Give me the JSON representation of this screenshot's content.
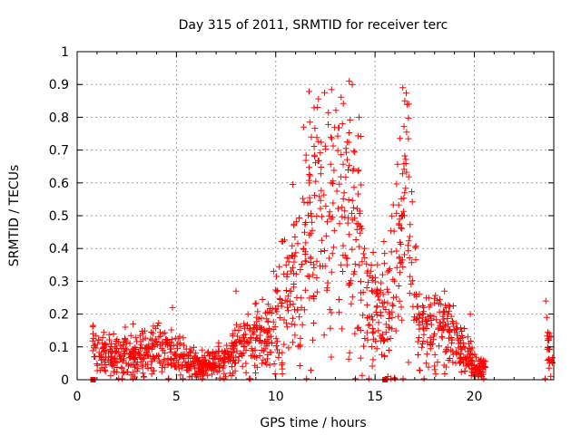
{
  "chart_data": {
    "type": "scatter",
    "title": "Day 315 of 2011, SRMTID for receiver terc",
    "xlabel": "GPS time / hours",
    "ylabel": "SRMTID / TECUs",
    "xlim": [
      0,
      24
    ],
    "ylim": [
      0,
      1
    ],
    "x_ticks": [
      0,
      5,
      10,
      15,
      20
    ],
    "y_ticks": [
      0,
      0.1,
      0.2,
      0.3,
      0.4,
      0.5,
      0.6,
      0.7,
      0.8,
      0.9,
      1
    ],
    "x_tick_labels": [
      "0",
      "5",
      "10",
      "15",
      "20"
    ],
    "y_tick_labels": [
      "0",
      "0.1",
      "0.2",
      "0.3",
      "0.4",
      "0.5",
      "0.6",
      "0.7",
      "0.8",
      "0.9",
      "1"
    ],
    "grid": true,
    "marker": "+",
    "color": "#ff0000",
    "trend": [
      {
        "x": 0.8,
        "y": 0.08
      },
      {
        "x": 2.0,
        "y": 0.07
      },
      {
        "x": 3.5,
        "y": 0.08
      },
      {
        "x": 4.5,
        "y": 0.1
      },
      {
        "x": 5.0,
        "y": 0.07
      },
      {
        "x": 6.5,
        "y": 0.04
      },
      {
        "x": 7.5,
        "y": 0.07
      },
      {
        "x": 8.5,
        "y": 0.12
      },
      {
        "x": 9.5,
        "y": 0.13
      },
      {
        "x": 10.5,
        "y": 0.25
      },
      {
        "x": 11.5,
        "y": 0.38
      },
      {
        "x": 12.2,
        "y": 0.5
      },
      {
        "x": 13.0,
        "y": 0.42
      },
      {
        "x": 13.8,
        "y": 0.48
      },
      {
        "x": 14.6,
        "y": 0.25
      },
      {
        "x": 15.3,
        "y": 0.18
      },
      {
        "x": 16.0,
        "y": 0.32
      },
      {
        "x": 16.6,
        "y": 0.45
      },
      {
        "x": 17.2,
        "y": 0.15
      },
      {
        "x": 18.2,
        "y": 0.15
      },
      {
        "x": 19.0,
        "y": 0.13
      },
      {
        "x": 19.6,
        "y": 0.07
      },
      {
        "x": 20.5,
        "y": 0.03
      }
    ],
    "segments": [
      {
        "x_start": 0.75,
        "x_end": 20.6,
        "points": 1400,
        "seed": 31511
      },
      {
        "x_start": 23.55,
        "x_end": 23.95,
        "points": 22,
        "seed": 2011
      }
    ],
    "notable_points": [
      {
        "x": 0.8,
        "y": 0.14
      },
      {
        "x": 4.8,
        "y": 0.22
      },
      {
        "x": 8.0,
        "y": 0.27
      },
      {
        "x": 11.4,
        "y": 0.77
      },
      {
        "x": 12.1,
        "y": 0.83
      },
      {
        "x": 12.8,
        "y": 0.6
      },
      {
        "x": 13.7,
        "y": 0.91
      },
      {
        "x": 13.85,
        "y": 0.9
      },
      {
        "x": 14.2,
        "y": 0.8
      },
      {
        "x": 16.4,
        "y": 0.89
      },
      {
        "x": 16.5,
        "y": 0.85
      },
      {
        "x": 16.7,
        "y": 0.84
      },
      {
        "x": 18.5,
        "y": 0.27
      },
      {
        "x": 19.8,
        "y": 0.2
      },
      {
        "x": 20.2,
        "y": 0.01
      },
      {
        "x": 23.6,
        "y": 0.24
      },
      {
        "x": 23.65,
        "y": 0.19
      },
      {
        "x": 23.7,
        "y": 0.12
      },
      {
        "x": 23.8,
        "y": 0.05
      },
      {
        "x": 23.85,
        "y": 0.01
      }
    ],
    "squares_at_zero": [
      0.8,
      15.5
    ]
  }
}
